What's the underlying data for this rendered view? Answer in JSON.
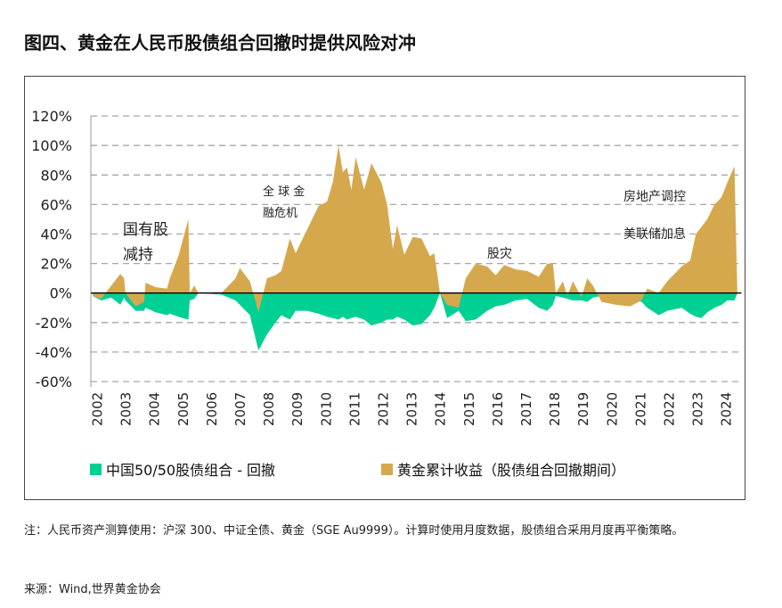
{
  "title": "图四、黄金在人民币股债组合回撤时提供风险对冲",
  "note": "注：人民币资产测算使用：沪深 300、中证全债、黄金（SGE Au9999）。计算时使用月度数据，股债组合采用月度再平衡策略。",
  "source": "来源：Wind,世界黄金协会",
  "colors": {
    "gold": "#D6A84E",
    "drawdown": "#00D094",
    "grid": "#A6A6A6"
  },
  "chart_data": {
    "type": "area",
    "title": "",
    "xlabel": "",
    "ylabel": "",
    "ylim": [
      -60,
      120
    ],
    "xlim": [
      2002,
      2024.6
    ],
    "grid": true,
    "legend_position": "bottom",
    "y_ticks": [
      "120%",
      "100%",
      "80%",
      "60%",
      "40%",
      "20%",
      "0%",
      "-20%",
      "-40%",
      "-60%"
    ],
    "y_tick_values": [
      120,
      100,
      80,
      60,
      40,
      20,
      0,
      -20,
      -40,
      -60
    ],
    "x_ticks": [
      "2002",
      "2003",
      "2004",
      "2005",
      "2006",
      "2007",
      "2008",
      "2009",
      "2010",
      "2011",
      "2012",
      "2013",
      "2014",
      "2015",
      "2016",
      "2017",
      "2018",
      "2019",
      "2020",
      "2021",
      "2022",
      "2023",
      "2024"
    ],
    "x": [
      2002.0,
      2002.3,
      2002.65,
      2002.97,
      2003.1,
      2003.15,
      2003.5,
      2003.8,
      2003.85,
      2004.2,
      2004.6,
      2004.7,
      2005.0,
      2005.35,
      2005.4,
      2005.55,
      2005.7,
      2006.5,
      2007.0,
      2007.15,
      2007.5,
      2007.8,
      2008.1,
      2008.4,
      2008.6,
      2008.9,
      2009.1,
      2009.5,
      2009.9,
      2010.2,
      2010.4,
      2010.6,
      2010.75,
      2010.9,
      2011.05,
      2011.2,
      2011.5,
      2011.75,
      2012.1,
      2012.3,
      2012.5,
      2012.65,
      2012.9,
      2013.2,
      2013.5,
      2013.8,
      2013.95,
      2014.15,
      2014.4,
      2014.8,
      2015.05,
      2015.4,
      2015.8,
      2016.1,
      2016.4,
      2016.8,
      2017.2,
      2017.6,
      2017.9,
      2018.1,
      2018.2,
      2018.45,
      2018.6,
      2018.8,
      2019.1,
      2019.3,
      2019.5,
      2019.8,
      2020.3,
      2020.8,
      2021.2,
      2021.4,
      2021.8,
      2022.1,
      2022.6,
      2022.9,
      2023.1,
      2023.3,
      2023.5,
      2023.75,
      2024.0,
      2024.2,
      2024.45,
      2024.55
    ],
    "series": [
      {
        "name": "中国50/50股债组合 - 回撤",
        "color": "#00D094",
        "values": [
          -2,
          -5,
          -3,
          -8,
          -3,
          -5,
          -12,
          -12,
          -10,
          -13,
          -15,
          -14,
          -16,
          -18,
          -5,
          -4,
          0,
          -1,
          -5,
          -8,
          -15,
          -39,
          -28,
          -20,
          -15,
          -18,
          -12,
          -12,
          -14,
          -16,
          -17,
          -18,
          -16,
          -18,
          -17,
          -16,
          -18,
          -22,
          -20,
          -18,
          -18,
          -16,
          -18,
          -22,
          -21,
          -15,
          -10,
          0,
          -17,
          -12,
          -19,
          -18,
          -12,
          -9,
          -8,
          -5,
          -4,
          -10,
          -12,
          -8,
          -2,
          -3,
          -4,
          -5,
          -5,
          -6,
          -3,
          -2,
          -3,
          -4,
          -6,
          -10,
          -15,
          -12,
          -10,
          -14,
          -16,
          -17,
          -13,
          -10,
          -8,
          -5,
          -5,
          0
        ]
      },
      {
        "name": "黄金累计收益（股债组合回撤期间）",
        "color": "#D6A84E",
        "values": [
          -2,
          -4,
          5,
          13,
          10,
          0,
          -9,
          -6,
          7,
          4,
          3,
          10,
          25,
          50,
          0,
          5,
          0,
          0,
          10,
          17,
          8,
          -13,
          10,
          12,
          15,
          37,
          27,
          43,
          59,
          62,
          75,
          100,
          82,
          85,
          70,
          92,
          70,
          88,
          75,
          60,
          30,
          46,
          26,
          38,
          37,
          25,
          27,
          0,
          -8,
          -10,
          10,
          20,
          18,
          12,
          19,
          16,
          15,
          11,
          20,
          20,
          0,
          8,
          -2,
          8,
          -3,
          10,
          5,
          -6,
          -8,
          -9,
          -5,
          3,
          0,
          8,
          18,
          22,
          40,
          45,
          50,
          60,
          65,
          75,
          86,
          0
        ]
      }
    ],
    "annotations": [
      {
        "lines": [
          "国有股",
          "减持"
        ]
      },
      {
        "lines": [
          "全 球 金",
          "融危机"
        ]
      },
      {
        "lines": [
          "股灾"
        ]
      },
      {
        "lines": [
          "房地产调控"
        ]
      },
      {
        "lines": [
          "美联储加息"
        ]
      }
    ]
  }
}
